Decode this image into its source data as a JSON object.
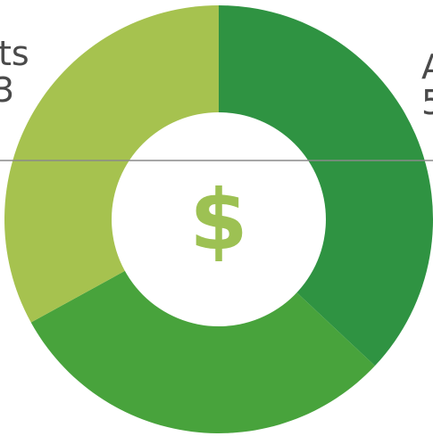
{
  "chart_data": {
    "type": "pie",
    "categories": [
      "A",
      "",
      ""
    ],
    "values": [
      37,
      30,
      33
    ],
    "labels": {
      "top_left_line1": "ts",
      "top_left_line2": "3",
      "top_right_line1": "A",
      "top_right_line2": "5"
    },
    "center_symbol": "$",
    "colors": [
      "#2f9342",
      "#48a33c",
      "#a6c24f"
    ],
    "center_symbol_color": "#9dc153",
    "divider_color": "#8a8a8a"
  }
}
